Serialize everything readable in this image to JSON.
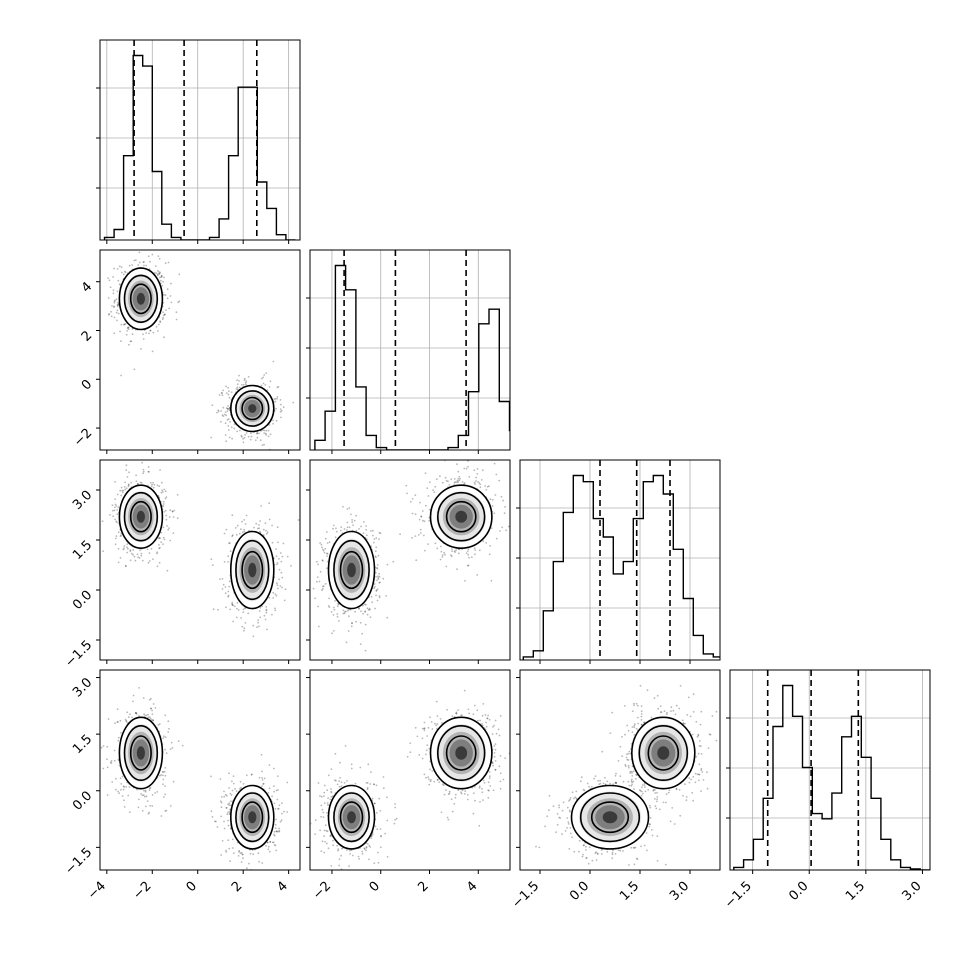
{
  "chart_data": {
    "type": "corner",
    "grid": true,
    "n_params": 4,
    "ranges": [
      [
        -4.3,
        4.5
      ],
      [
        -2.9,
        5.3
      ],
      [
        -2.1,
        3.9
      ],
      [
        -2.1,
        3.2
      ]
    ],
    "ticks": [
      [
        {
          "v": -4,
          "label": "−4"
        },
        {
          "v": -2,
          "label": "−2"
        },
        {
          "v": 0,
          "label": "0"
        },
        {
          "v": 2,
          "label": "2"
        },
        {
          "v": 4,
          "label": "4"
        }
      ],
      [
        {
          "v": -2,
          "label": "−2"
        },
        {
          "v": 0,
          "label": "0"
        },
        {
          "v": 2,
          "label": "2"
        },
        {
          "v": 4,
          "label": "4"
        }
      ],
      [
        {
          "v": -1.5,
          "label": "−1.5"
        },
        {
          "v": 0,
          "label": "0.0"
        },
        {
          "v": 1.5,
          "label": "1.5"
        },
        {
          "v": 3,
          "label": "3.0"
        }
      ],
      [
        {
          "v": -1.5,
          "label": "−1.5"
        },
        {
          "v": 0,
          "label": "0.0"
        },
        {
          "v": 1.5,
          "label": "1.5"
        },
        {
          "v": 3,
          "label": "3.0"
        }
      ]
    ],
    "modes": [
      {
        "weight": 0.5,
        "mean": [
          -2.5,
          3.3,
          2.2,
          1.0
        ],
        "sd": [
          0.45,
          0.6,
          0.45,
          0.45
        ]
      },
      {
        "weight": 0.5,
        "mean": [
          2.4,
          -1.2,
          0.6,
          -0.7
        ],
        "sd": [
          0.45,
          0.45,
          0.55,
          0.4
        ]
      }
    ],
    "histograms": [
      {
        "bin_start": -4.1,
        "bin_width": 0.42,
        "counts": [
          0.05,
          0.2,
          1.6,
          3.5,
          3.3,
          1.3,
          0.3,
          0.05,
          0,
          0,
          0,
          0.05,
          0.4,
          1.6,
          2.9,
          2.9,
          1.1,
          0.6,
          0.1,
          0
        ]
      },
      {
        "bin_start": -2.7,
        "bin_width": 0.42,
        "counts": [
          0.2,
          0.8,
          3.8,
          3.3,
          1.3,
          0.3,
          0.05,
          0,
          0,
          0,
          0,
          0,
          0,
          0.05,
          0.3,
          1.2,
          2.6,
          2.9,
          1.0,
          0.4,
          0.1
        ]
      },
      {
        "bin_start": -2.0,
        "bin_width": 0.3,
        "counts": [
          0.05,
          0.15,
          0.8,
          1.6,
          2.4,
          3.0,
          2.9,
          2.3,
          2.0,
          1.4,
          1.6,
          2.3,
          2.9,
          3.0,
          2.7,
          1.8,
          1.0,
          0.4,
          0.1,
          0.05
        ]
      },
      {
        "bin_start": -2.0,
        "bin_width": 0.26,
        "counts": [
          0.05,
          0.2,
          0.6,
          1.4,
          2.8,
          3.6,
          3.0,
          2.0,
          1.1,
          1.0,
          1.5,
          2.6,
          3.0,
          2.2,
          1.4,
          0.6,
          0.2,
          0.05,
          0.02,
          0
        ]
      }
    ],
    "quantiles": [
      [
        -2.8,
        -0.6,
        2.6
      ],
      [
        -1.5,
        0.6,
        3.5
      ],
      [
        0.3,
        1.4,
        2.4
      ],
      [
        -1.1,
        0.05,
        1.3
      ]
    ]
  }
}
